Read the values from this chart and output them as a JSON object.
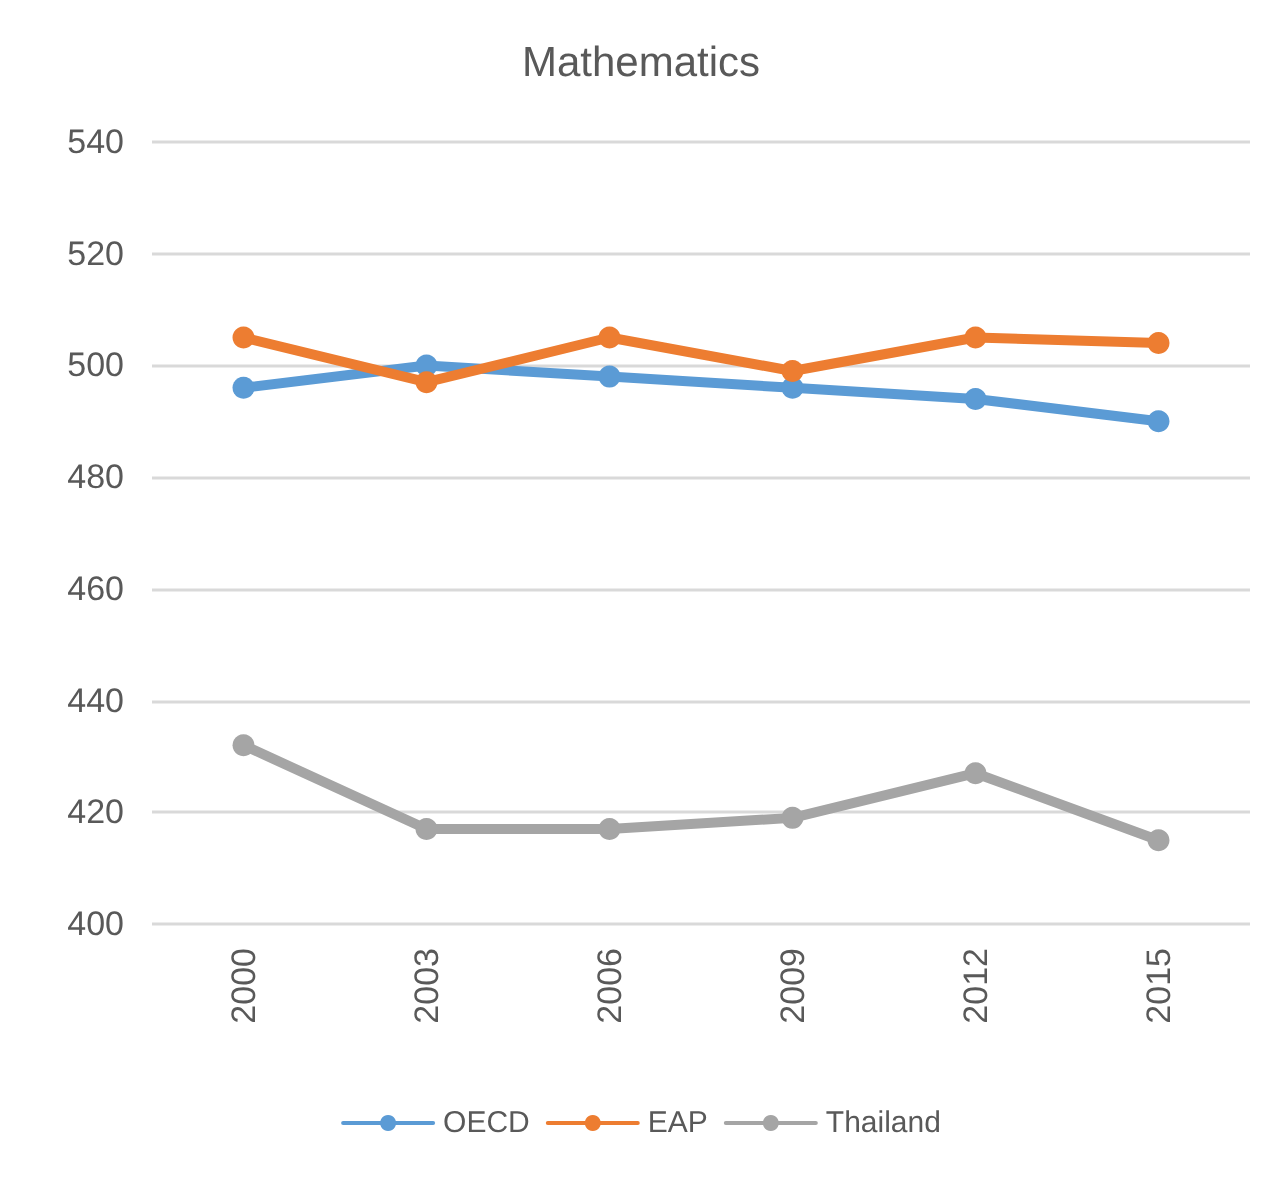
{
  "chart_data": {
    "type": "line",
    "title": "Mathematics",
    "categories": [
      "2000",
      "2003",
      "2006",
      "2009",
      "2012",
      "2015"
    ],
    "series": [
      {
        "name": "OECD",
        "color": "#5b9bd5",
        "values": [
          496,
          500,
          498,
          496,
          494,
          490
        ]
      },
      {
        "name": "EAP",
        "color": "#ed7d31",
        "values": [
          505,
          497,
          505,
          499,
          505,
          504
        ]
      },
      {
        "name": "Thailand",
        "color": "#a5a5a5",
        "values": [
          432,
          417,
          417,
          419,
          427,
          415
        ]
      }
    ],
    "ylim": [
      400,
      540
    ],
    "yticks": [
      400,
      420,
      440,
      460,
      480,
      500,
      520,
      540
    ],
    "grid": "y",
    "legend": "bottom",
    "marker": "circle",
    "line_style": "solid"
  }
}
